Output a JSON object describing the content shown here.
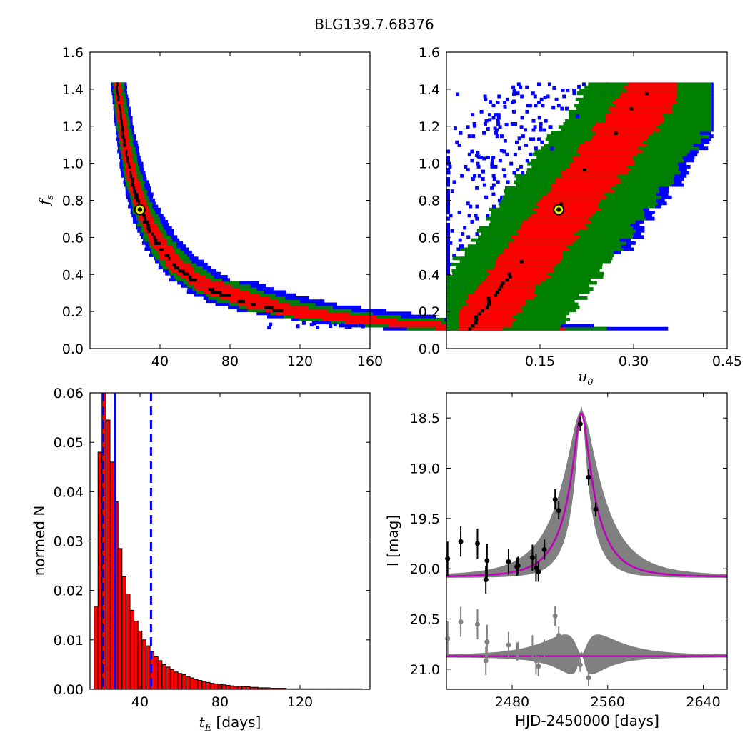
{
  "figure": {
    "title": "BLG139.7.68376"
  },
  "colors": {
    "black": "#000000",
    "red": "#ff0000",
    "green": "#008000",
    "blue": "#0000ff",
    "gray": "#808080",
    "magenta": "#bf00bf",
    "marker_fill": "#e8e800"
  },
  "chart_data": [
    {
      "type": "heatmap",
      "name": "tE_vs_fs",
      "xlabel": "",
      "ylabel": "f_s",
      "ylabel_main": "f",
      "ylabel_sub": "s",
      "xlim": [
        0,
        160
      ],
      "ylim": [
        0.0,
        1.6
      ],
      "xticks": [
        40,
        80,
        120,
        160
      ],
      "yticks": [
        0.0,
        0.2,
        0.4,
        0.6,
        0.8,
        1.0,
        1.2,
        1.4,
        1.6
      ],
      "xtick_labels": [
        "40",
        "80",
        "120",
        "160"
      ],
      "ytick_labels": [
        "0.0",
        "0.2",
        "0.4",
        "0.6",
        "0.8",
        "1.0",
        "1.2",
        "1.4",
        "1.6"
      ],
      "levels": [
        "1-sigma (black)",
        "2-sigma (red)",
        "3-sigma (green)",
        "outer (blue)"
      ],
      "relation": "tE * fs approx 21.5",
      "fs_range": [
        0.1,
        1.43
      ],
      "best_fit": {
        "x": 28.5,
        "y": 0.75
      }
    },
    {
      "type": "heatmap",
      "name": "u0_vs_fs",
      "xlabel": "u_0",
      "xlabel_main": "u",
      "xlabel_sub": "0",
      "ylabel": "",
      "xlim": [
        0.0,
        0.45
      ],
      "ylim": [
        0.0,
        1.6
      ],
      "xticks": [
        0.15,
        0.3,
        0.45
      ],
      "yticks": [
        0.0,
        0.2,
        0.4,
        0.6,
        0.8,
        1.0,
        1.2,
        1.4,
        1.6
      ],
      "xtick_labels": [
        "0.15",
        "0.30",
        "0.45"
      ],
      "ytick_labels": [
        "0.0",
        "0.2",
        "0.4",
        "0.6",
        "0.8",
        "1.0",
        "1.2",
        "1.4",
        "1.6"
      ],
      "relation": "u0 approx 0.22 * fs + 0.02",
      "best_fit": {
        "x": 0.18,
        "y": 0.75
      }
    },
    {
      "type": "bar",
      "name": "tE_histogram",
      "xlabel": "t_E [days]",
      "xlabel_main": "t",
      "xlabel_sub": "E",
      "xlabel_rest": " [days]",
      "ylabel": "normed N",
      "xlim": [
        15,
        155
      ],
      "ylim": [
        0.0,
        0.06
      ],
      "xticks": [
        40,
        80,
        120
      ],
      "yticks": [
        0.0,
        0.01,
        0.02,
        0.03,
        0.04,
        0.05,
        0.06
      ],
      "xtick_labels": [
        "40",
        "80",
        "120"
      ],
      "ytick_labels": [
        "0.00",
        "0.01",
        "0.02",
        "0.03",
        "0.04",
        "0.05",
        "0.06"
      ],
      "bin_start": 17,
      "bin_width": 2,
      "values": [
        0.0168,
        0.048,
        0.06,
        0.0545,
        0.046,
        0.038,
        0.0285,
        0.0228,
        0.0193,
        0.016,
        0.0138,
        0.0118,
        0.01,
        0.0088,
        0.0076,
        0.0066,
        0.0058,
        0.005,
        0.0045,
        0.004,
        0.0035,
        0.0032,
        0.003,
        0.0026,
        0.0023,
        0.002,
        0.0018,
        0.0016,
        0.0014,
        0.0012,
        0.0011,
        0.001,
        0.0009,
        0.0008,
        0.0007,
        0.0006,
        0.0006,
        0.0005,
        0.0005,
        0.0004,
        0.0004,
        0.0003,
        0.0003,
        0.0003,
        0.0002,
        0.0002,
        0.0002,
        0.0002,
        0.0001,
        0.0001,
        0.0001,
        0.0001,
        0.0001,
        0.0001,
        0.0001,
        0.0001,
        0.0001,
        0.0001,
        0.0001,
        0.0001,
        0.0001,
        0.0001,
        0.0001,
        0.0001,
        0.0001,
        0.0001,
        0.0001
      ],
      "solid_line": 27.5,
      "dashed_lines": [
        21.5,
        45.5
      ]
    },
    {
      "type": "line",
      "name": "light_curve",
      "xlabel": "HJD-2450000 [days]",
      "ylabel": "I [mag]",
      "xlim": [
        2425,
        2660
      ],
      "ylim": [
        21.2,
        18.25
      ],
      "xticks": [
        2480,
        2560,
        2640
      ],
      "yticks": [
        18.5,
        19.0,
        19.5,
        20.0,
        20.5,
        21.0
      ],
      "xtick_labels": [
        "2480",
        "2560",
        "2640"
      ],
      "ytick_labels": [
        "18.5",
        "19.0",
        "19.5",
        "20.0",
        "20.5",
        "21.0"
      ],
      "model": {
        "t0": 2538,
        "tE": 28.5,
        "u0": 0.18,
        "baseline": 20.08,
        "fs": 0.75
      },
      "residual_offset": 20.87,
      "points": [
        {
          "t": 2426,
          "mag": 19.9,
          "err": 0.17
        },
        {
          "t": 2437,
          "mag": 19.73,
          "err": 0.15
        },
        {
          "t": 2451,
          "mag": 19.75,
          "err": 0.15
        },
        {
          "t": 2458,
          "mag": 20.11,
          "err": 0.14
        },
        {
          "t": 2459,
          "mag": 19.92,
          "err": 0.17
        },
        {
          "t": 2477,
          "mag": 19.93,
          "err": 0.13
        },
        {
          "t": 2484,
          "mag": 19.98,
          "err": 0.09
        },
        {
          "t": 2485,
          "mag": 19.97,
          "err": 0.09
        },
        {
          "t": 2497,
          "mag": 19.89,
          "err": 0.13
        },
        {
          "t": 2500,
          "mag": 19.99,
          "err": 0.14
        },
        {
          "t": 2502,
          "mag": 20.03,
          "err": 0.1
        },
        {
          "t": 2507,
          "mag": 19.81,
          "err": 0.1
        },
        {
          "t": 2516,
          "mag": 19.31,
          "err": 0.1
        },
        {
          "t": 2519,
          "mag": 19.42,
          "err": 0.09
        },
        {
          "t": 2537,
          "mag": 18.56,
          "err": 0.07
        },
        {
          "t": 2544,
          "mag": 19.09,
          "err": 0.08
        },
        {
          "t": 2550,
          "mag": 19.41,
          "err": 0.07
        }
      ]
    }
  ]
}
